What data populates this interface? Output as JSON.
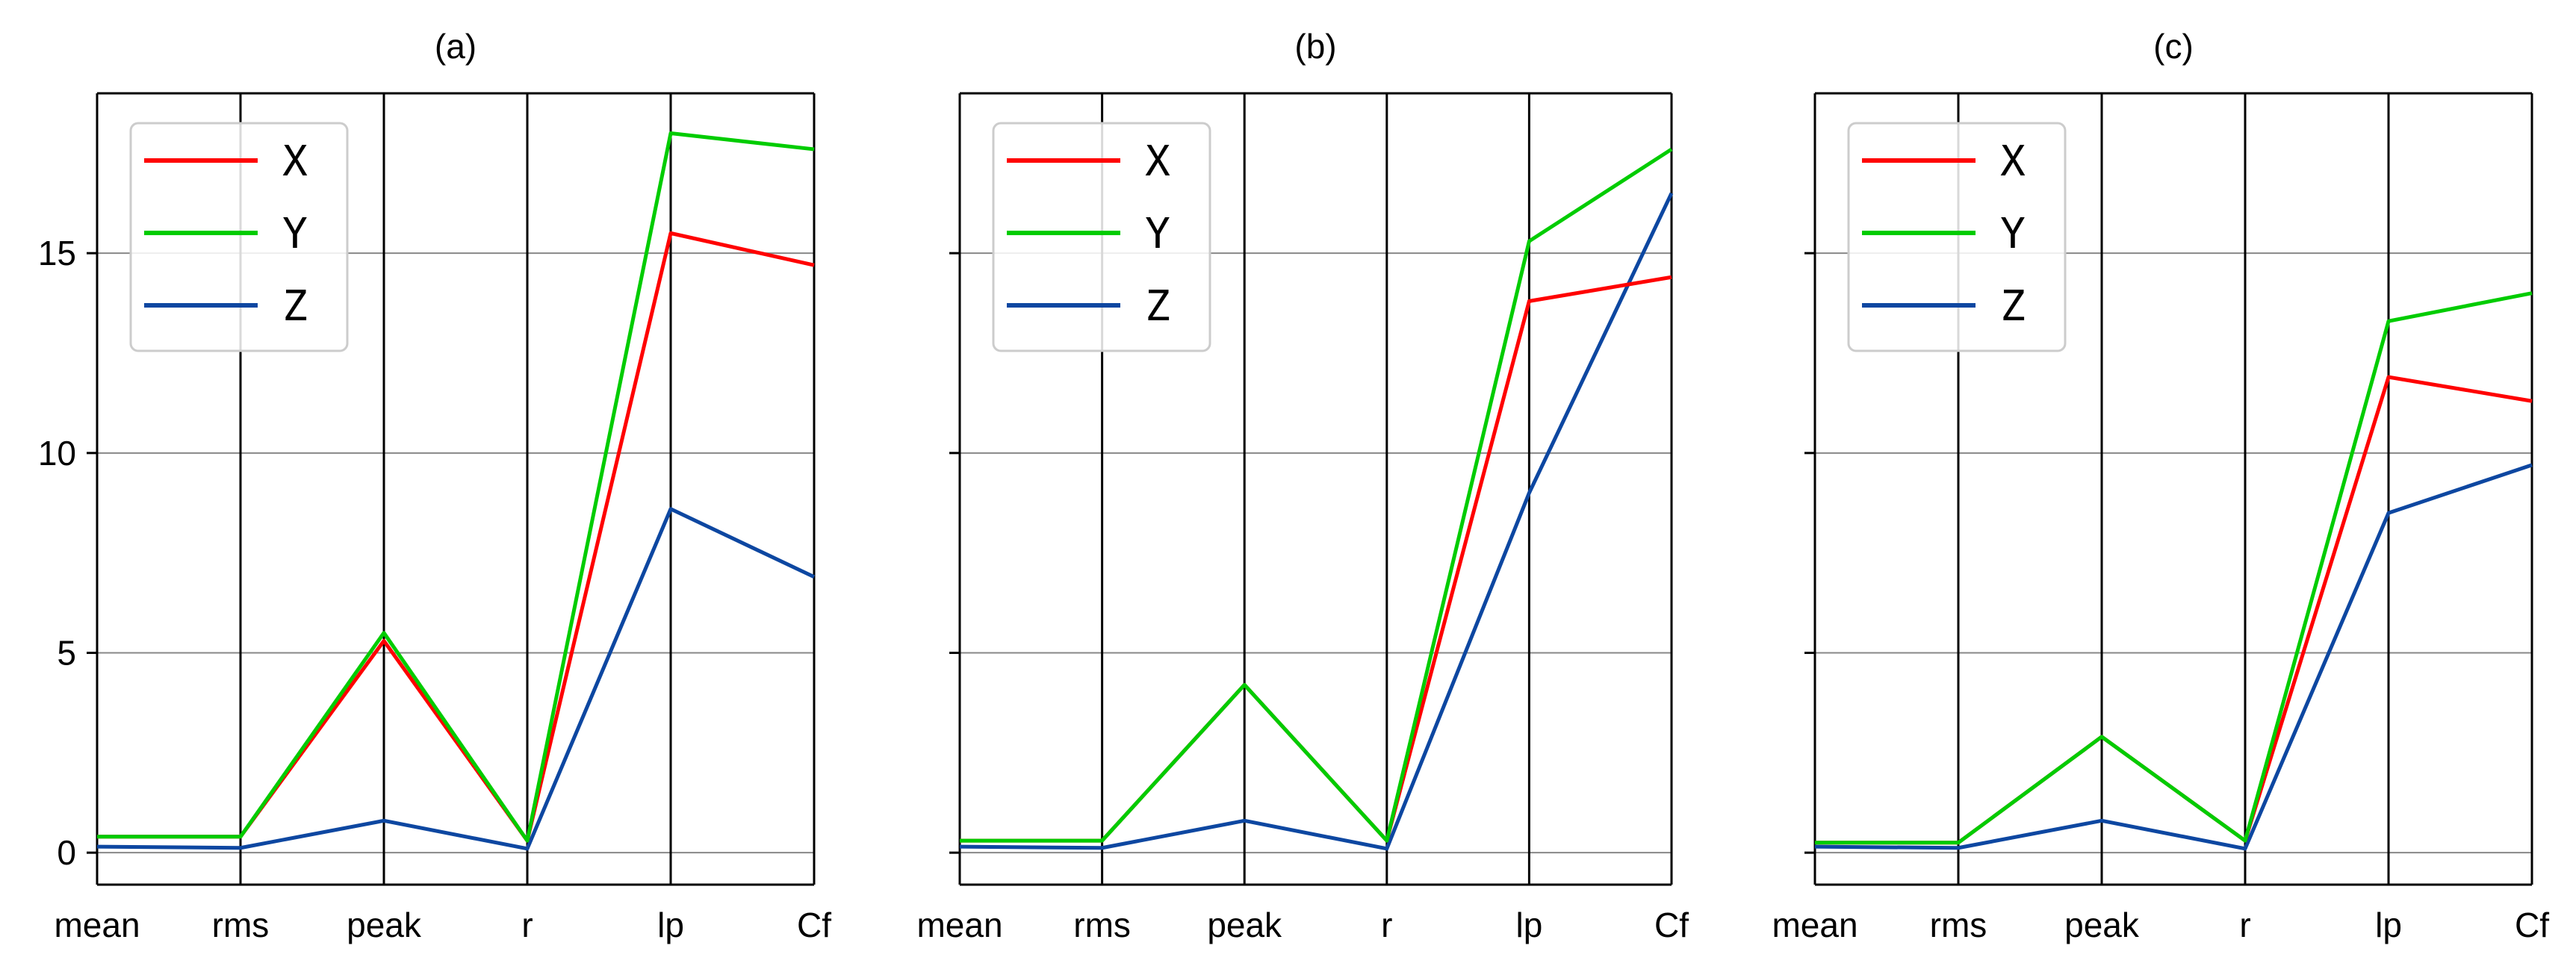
{
  "chart_data": [
    {
      "type": "line",
      "title": "(a)",
      "categories": [
        "mean",
        "rms",
        "peak",
        "r",
        "lp",
        "Cf"
      ],
      "ylim": [
        -0.8,
        19.0
      ],
      "yticks": [
        0,
        5,
        10,
        15
      ],
      "grid": true,
      "legend_position": "top-left",
      "series": [
        {
          "name": "X",
          "color": "#ff0000",
          "values": [
            0.4,
            0.4,
            5.3,
            0.3,
            15.5,
            14.7
          ]
        },
        {
          "name": "Y",
          "color": "#00cc00",
          "values": [
            0.4,
            0.4,
            5.5,
            0.3,
            18.0,
            17.6
          ]
        },
        {
          "name": "Z",
          "color": "#0d47a1",
          "values": [
            0.15,
            0.12,
            0.8,
            0.1,
            8.6,
            6.9
          ]
        }
      ]
    },
    {
      "type": "line",
      "title": "(b)",
      "categories": [
        "mean",
        "rms",
        "peak",
        "r",
        "lp",
        "Cf"
      ],
      "ylim": [
        -0.8,
        19.0
      ],
      "yticks": [
        0,
        5,
        10,
        15
      ],
      "grid": true,
      "legend_position": "top-left",
      "series": [
        {
          "name": "X",
          "color": "#ff0000",
          "values": [
            0.3,
            0.3,
            4.2,
            0.3,
            13.8,
            14.4
          ]
        },
        {
          "name": "Y",
          "color": "#00cc00",
          "values": [
            0.3,
            0.3,
            4.2,
            0.3,
            15.3,
            17.6
          ]
        },
        {
          "name": "Z",
          "color": "#0d47a1",
          "values": [
            0.15,
            0.12,
            0.8,
            0.1,
            9.0,
            16.5
          ]
        }
      ]
    },
    {
      "type": "line",
      "title": "(c)",
      "categories": [
        "mean",
        "rms",
        "peak",
        "r",
        "lp",
        "Cf"
      ],
      "ylim": [
        -0.8,
        19.0
      ],
      "yticks": [
        0,
        5,
        10,
        15
      ],
      "grid": true,
      "legend_position": "top-left",
      "series": [
        {
          "name": "X",
          "color": "#ff0000",
          "values": [
            0.25,
            0.25,
            2.9,
            0.3,
            11.9,
            11.3
          ]
        },
        {
          "name": "Y",
          "color": "#00cc00",
          "values": [
            0.25,
            0.25,
            2.9,
            0.3,
            13.3,
            14.0
          ]
        },
        {
          "name": "Z",
          "color": "#0d47a1",
          "values": [
            0.15,
            0.12,
            0.8,
            0.1,
            8.5,
            9.7
          ]
        }
      ]
    }
  ]
}
